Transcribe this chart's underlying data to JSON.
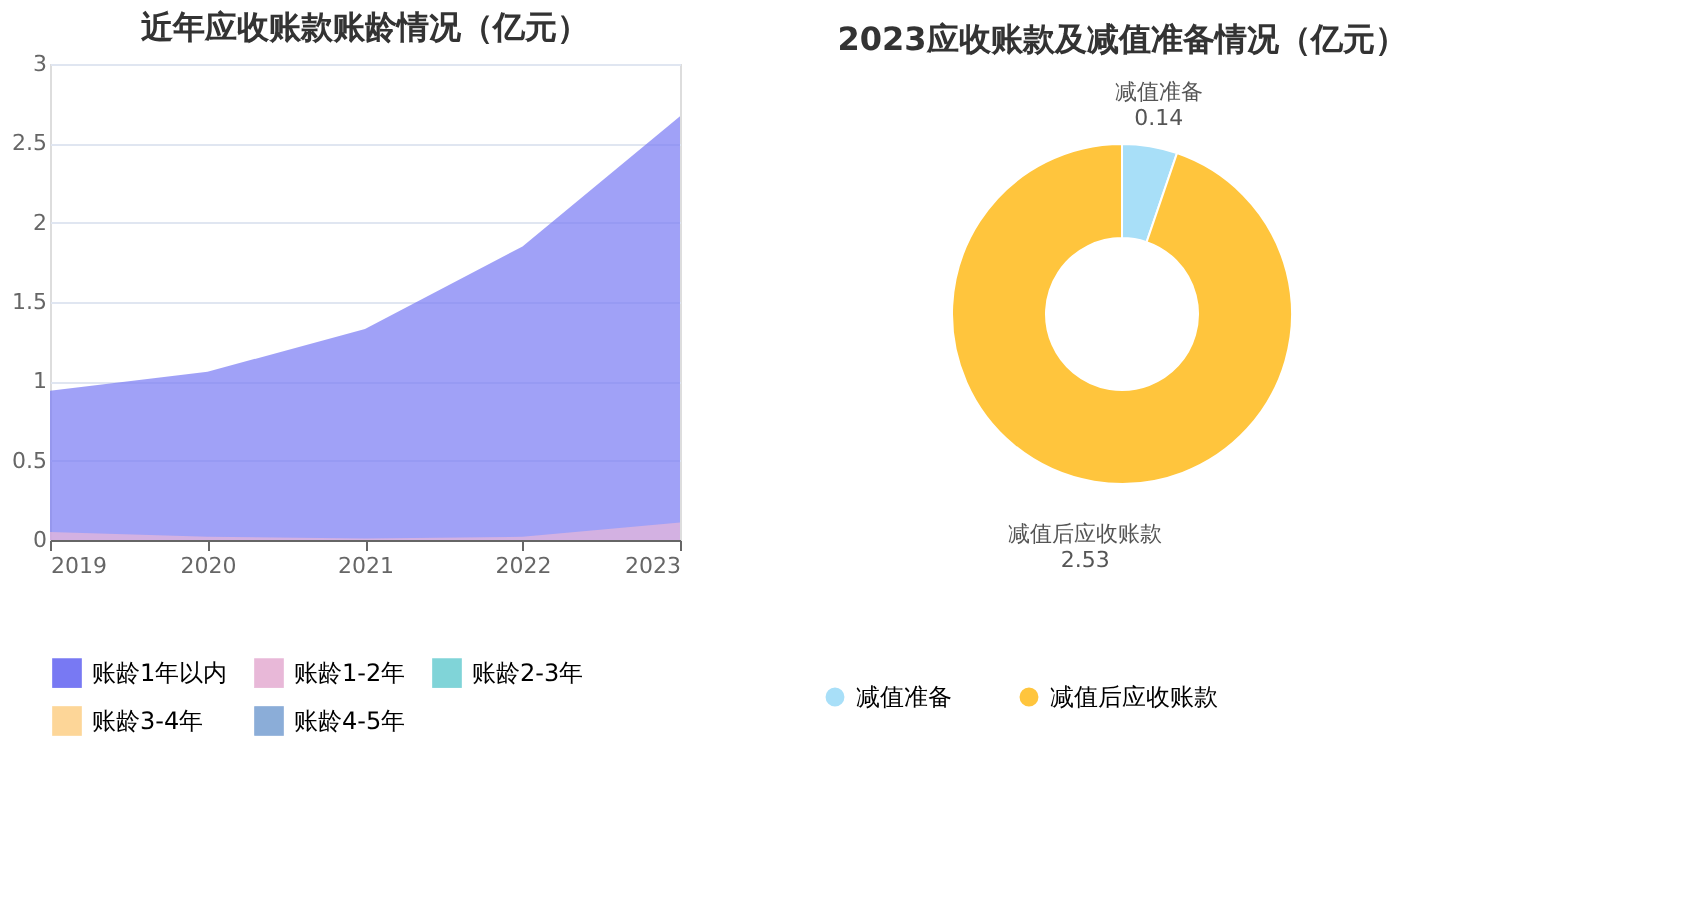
{
  "chart_data": [
    {
      "type": "area",
      "title": "近年应收账款账龄情况（亿元）",
      "categories": [
        "2019",
        "2020",
        "2021",
        "2022",
        "2023"
      ],
      "stacked": false,
      "ylim": [
        0,
        3
      ],
      "yticks": [
        0,
        0.5,
        1,
        1.5,
        2,
        2.5,
        3
      ],
      "grid": "y",
      "legend": "bottom",
      "series": [
        {
          "name": "账龄1年以内",
          "color": "#7879f3",
          "values": [
            0.94,
            1.06,
            1.33,
            1.85,
            2.67
          ]
        },
        {
          "name": "账龄1-2年",
          "color": "#e8b8d8",
          "values": [
            0.05,
            0.02,
            0.01,
            0.02,
            0.11
          ]
        },
        {
          "name": "账龄2-3年",
          "color": "#80d4d8",
          "values": [
            null,
            null,
            null,
            null,
            null
          ]
        },
        {
          "name": "账龄3-4年",
          "color": "#fdd698",
          "values": [
            null,
            null,
            null,
            null,
            null
          ]
        },
        {
          "name": "账龄4-5年",
          "color": "#8badd8",
          "values": [
            null,
            null,
            null,
            null,
            null
          ]
        }
      ]
    },
    {
      "type": "donut",
      "title": "2023应收账款及减值准备情况（亿元）",
      "categories": [
        "减值准备",
        "减值后应收账款"
      ],
      "values": [
        0.14,
        2.53
      ],
      "colors": [
        "#a8dff8",
        "#ffc53d"
      ],
      "data_labels": true,
      "legend": "bottom"
    }
  ]
}
